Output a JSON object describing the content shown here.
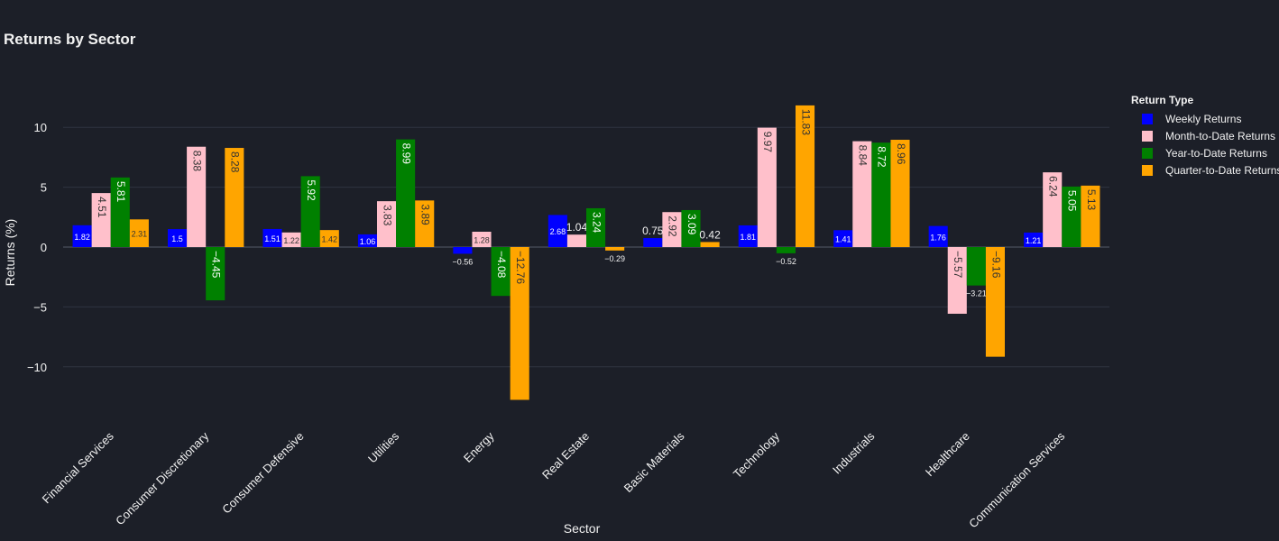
{
  "chart_data": {
    "type": "bar",
    "title": "Returns by Sector",
    "xlabel": "Sector",
    "ylabel": "Returns (%)",
    "ylim": [
      -14.5,
      14.5
    ],
    "yticks": [
      -10,
      -5,
      0,
      5,
      10
    ],
    "ytick_labels": [
      "−10",
      "−5",
      "0",
      "5",
      "10"
    ],
    "grid": true,
    "legend_title": "Return Type",
    "legend_position": "right",
    "categories": [
      "Financial Services",
      "Consumer Discretionary",
      "Consumer Defensive",
      "Utilities",
      "Energy",
      "Real Estate",
      "Basic Materials",
      "Technology",
      "Industrials",
      "Healthcare",
      "Communication Services"
    ],
    "series": [
      {
        "name": "Weekly Returns",
        "color": "#0000ff",
        "values": [
          1.82,
          1.5,
          1.51,
          1.06,
          -0.56,
          2.68,
          0.75,
          1.81,
          1.41,
          1.76,
          1.21
        ],
        "labels": [
          "1.82",
          "1.5",
          "1.51",
          "1.06",
          "−0.56",
          "2.68",
          "0.75",
          "1.81",
          "1.41",
          "1.76",
          "1.21"
        ]
      },
      {
        "name": "Month-to-Date Returns",
        "color": "#ffc0cb",
        "values": [
          4.51,
          8.38,
          1.22,
          3.83,
          1.28,
          1.04,
          2.92,
          9.97,
          8.84,
          -5.57,
          6.24
        ],
        "labels": [
          "4.51",
          "8.38",
          "1.22",
          "3.83",
          "1.28",
          "1.04",
          "2.92",
          "9.97",
          "8.84",
          "−5.57",
          "6.24"
        ]
      },
      {
        "name": "Year-to-Date Returns",
        "color": "#008000",
        "values": [
          5.81,
          -4.45,
          5.92,
          8.99,
          -4.08,
          3.24,
          3.09,
          -0.52,
          8.72,
          -3.21,
          5.05
        ],
        "labels": [
          "5.81",
          "−4.45",
          "5.92",
          "8.99",
          "−4.08",
          "3.24",
          "3.09",
          "−0.52",
          "8.72",
          "−3.21",
          "5.05"
        ]
      },
      {
        "name": "Quarter-to-Date Returns",
        "color": "#ffa500",
        "values": [
          2.31,
          8.28,
          1.42,
          3.89,
          -12.76,
          -0.29,
          0.42,
          11.83,
          8.96,
          -9.16,
          5.13
        ],
        "labels": [
          "2.31",
          "8.28",
          "1.42",
          "3.89",
          "−12.76",
          "−0.29",
          "0.42",
          "11.83",
          "8.96",
          "−9.16",
          "5.13"
        ]
      }
    ]
  }
}
